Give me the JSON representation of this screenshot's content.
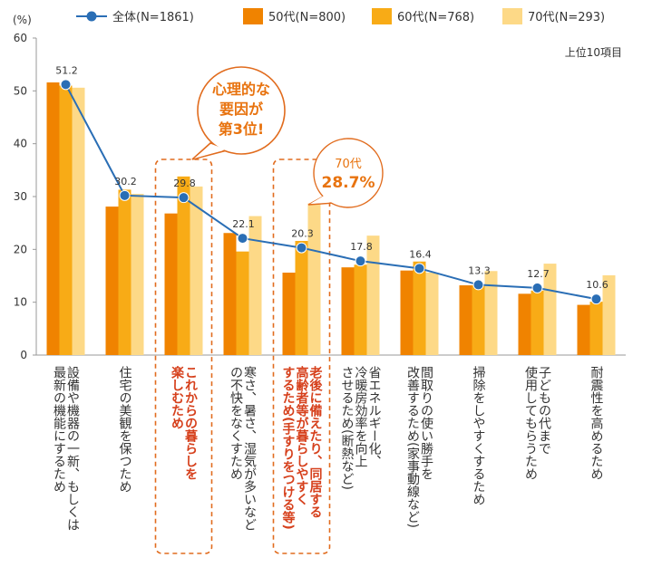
{
  "chart_data": {
    "type": "bar",
    "y_unit": "(%)",
    "ylim": [
      0,
      60
    ],
    "yticks": [
      0,
      10,
      20,
      30,
      40,
      50,
      60
    ],
    "subtitle": "上位10項目",
    "categories": [
      [
        "設備や機器の一新、もしくは",
        "最新の機能にするため"
      ],
      [
        "住宅の美観を保つため"
      ],
      [
        "これからの暮らしを",
        "楽しむため"
      ],
      [
        "寒さ、暑さ、湿気が多いなど",
        "の不快をなくすため"
      ],
      [
        "老後に備えたり、同居する",
        "高齢者等が暮らしやすく",
        "するため(手すりをつける等)"
      ],
      [
        "省エネルギー化、",
        "冷暖房効率を向上",
        "させるため(断熱など)"
      ],
      [
        "間取りの使い勝手を",
        "改善するため(家事動線など)"
      ],
      [
        "掃除をしやすくするため"
      ],
      [
        "子どもの代まで",
        "使用してもらうため"
      ],
      [
        "耐震性を高めるため"
      ]
    ],
    "highlighted_categories": [
      2,
      4
    ],
    "series": [
      {
        "name": "50代(N=800)",
        "kind": "bar",
        "color": "#F08300",
        "values": [
          51.6,
          28.1,
          26.8,
          23.1,
          15.6,
          16.6,
          16.0,
          13.2,
          11.6,
          9.5
        ]
      },
      {
        "name": "60代(N=768)",
        "kind": "bar",
        "color": "#F8AB16",
        "values": [
          51.0,
          31.3,
          33.8,
          19.6,
          21.6,
          17.1,
          17.7,
          13.2,
          12.2,
          10.1
        ]
      },
      {
        "name": "70代(N=293)",
        "kind": "bar",
        "color": "#FDD987",
        "values": [
          50.6,
          30.5,
          31.9,
          26.3,
          28.7,
          22.6,
          15.6,
          15.9,
          17.3,
          15.1
        ]
      },
      {
        "name": "全体(N=1861)",
        "kind": "line",
        "color": "#2A6EB5",
        "values": [
          51.2,
          30.2,
          29.8,
          22.1,
          20.3,
          17.8,
          16.4,
          13.3,
          12.7,
          10.6
        ]
      }
    ],
    "data_labels": [
      "51.2",
      "30.2",
      "29.8",
      "22.1",
      "20.3",
      "17.8",
      "16.4",
      "13.3",
      "12.7",
      "10.6"
    ],
    "annotations": [
      {
        "lines": [
          "心理的な",
          "要因が",
          "第3位!"
        ],
        "target_category": 2
      },
      {
        "lines": [
          "70代",
          "28.7%"
        ],
        "target_category": 4
      }
    ]
  },
  "colors": {
    "axis": "#999999",
    "highlight": "#E16C1E",
    "highlight_text": "#D6401C",
    "label_text": "#333333"
  }
}
